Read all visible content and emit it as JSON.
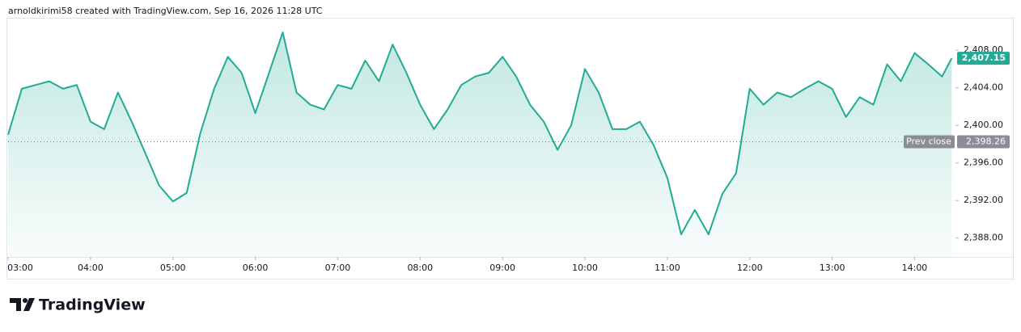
{
  "header": {
    "text": "arnoldkirimi58 created with TradingView.com, Sep 16, 2026 11:28 UTC"
  },
  "chart_data": {
    "type": "area",
    "x": [
      "03:00",
      "03:10",
      "03:20",
      "03:30",
      "03:40",
      "03:50",
      "04:00",
      "04:10",
      "04:20",
      "04:30",
      "04:40",
      "04:50",
      "05:00",
      "05:10",
      "05:20",
      "05:30",
      "05:40",
      "05:50",
      "06:00",
      "06:10",
      "06:20",
      "06:30",
      "06:40",
      "06:50",
      "07:00",
      "07:10",
      "07:20",
      "07:30",
      "07:40",
      "07:50",
      "08:00",
      "08:10",
      "08:20",
      "08:30",
      "08:40",
      "08:50",
      "09:00",
      "09:10",
      "09:20",
      "09:30",
      "09:40",
      "09:50",
      "10:00",
      "10:10",
      "10:20",
      "10:30",
      "10:40",
      "10:50",
      "11:00",
      "11:10",
      "11:20",
      "11:30",
      "11:40",
      "11:50",
      "12:00",
      "12:10",
      "12:20",
      "12:30",
      "12:40",
      "12:50",
      "13:00",
      "13:10",
      "13:20",
      "13:30",
      "13:40",
      "13:50",
      "14:00",
      "14:10",
      "14:20",
      "14:27"
    ],
    "series": [
      {
        "color": "#22ab94",
        "values": [
          2399.0,
          2403.9,
          2404.3,
          2404.7,
          2403.9,
          2404.3,
          2400.4,
          2399.6,
          2403.5,
          2400.4,
          2397.0,
          2393.6,
          2391.9,
          2392.8,
          2399.2,
          2403.9,
          2407.3,
          2405.6,
          2401.3,
          2405.6,
          2409.9,
          2403.5,
          2402.2,
          2401.7,
          2404.3,
          2403.9,
          2406.9,
          2404.7,
          2408.6,
          2405.6,
          2402.2,
          2399.6,
          2401.7,
          2404.3,
          2405.2,
          2405.6,
          2407.3,
          2405.2,
          2402.2,
          2400.4,
          2397.4,
          2400.0,
          2406.0,
          2403.5,
          2399.6,
          2399.6,
          2400.4,
          2397.9,
          2394.4,
          2388.4,
          2391.0,
          2388.4,
          2392.7,
          2394.9,
          2403.9,
          2402.2,
          2403.5,
          2403.0,
          2403.9,
          2404.7,
          2403.9,
          2400.9,
          2403.0,
          2402.2,
          2406.5,
          2404.7,
          2407.7,
          2406.5,
          2405.2,
          2407.15
        ]
      }
    ],
    "xlim": [
      "03:00",
      "14:28"
    ],
    "xticks": [
      "03:00",
      "04:00",
      "05:00",
      "06:00",
      "07:00",
      "08:00",
      "09:00",
      "10:00",
      "11:00",
      "12:00",
      "13:00",
      "14:00"
    ],
    "ylim": [
      2386,
      2411.2
    ],
    "yticks": [
      {
        "value": 2388,
        "label": "2,388.00"
      },
      {
        "value": 2392,
        "label": "2,392.00"
      },
      {
        "value": 2396,
        "label": "2,396.00"
      },
      {
        "value": 2400,
        "label": "2,400.00"
      },
      {
        "value": 2404,
        "label": "2,404.00"
      },
      {
        "value": 2408,
        "label": "2,408.00"
      }
    ],
    "grid": false,
    "prev_close": {
      "name": "Prev close",
      "value": 2398.26,
      "label": "2,398.26"
    },
    "last_price": {
      "value": 2407.15,
      "label": "2,407.15",
      "color": "#22ab94"
    }
  },
  "footer": {
    "brand": "TradingView"
  }
}
